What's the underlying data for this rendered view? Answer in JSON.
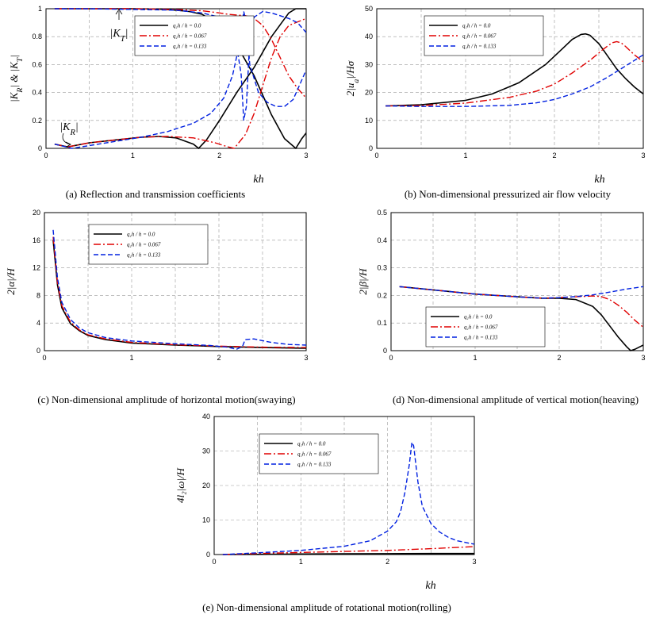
{
  "colors": {
    "series0": "#000000",
    "series1": "#e00000",
    "series2": "#0020e0",
    "grid": "#9a9a9a"
  },
  "chart_data": [
    {
      "id": "a",
      "type": "line",
      "caption": "(a) Reflection and transmission coefficients",
      "xlabel": "kh",
      "ylabel": "|K_R| & |K_T|",
      "xlim": [
        0,
        3
      ],
      "ylim": [
        0,
        1
      ],
      "xticks": [
        "0",
        "1",
        "2",
        "3"
      ],
      "yticks": [
        "0",
        "0.2",
        "0.4",
        "0.6",
        "0.8",
        "1"
      ],
      "legend": [
        "q₁h / h = 0.0",
        "q₁h / h = 0.067",
        "q₁h / h = 0.133"
      ],
      "legend_position": "top-right",
      "annotations": [
        "|K_T|",
        "|K_R|"
      ],
      "series": [
        {
          "name": "q₁h / h = 0.0 (K_R)",
          "x": [
            0.1,
            0.25,
            0.5,
            0.8,
            1.1,
            1.3,
            1.5,
            1.7,
            1.76,
            1.85,
            2.0,
            2.2,
            2.4,
            2.6,
            2.8,
            2.88,
            2.95,
            3.0
          ],
          "y": [
            0.03,
            0.01,
            0.04,
            0.06,
            0.08,
            0.085,
            0.075,
            0.03,
            0.0,
            0.06,
            0.2,
            0.4,
            0.58,
            0.8,
            0.97,
            1.0,
            1.0,
            1.0
          ]
        },
        {
          "name": "q₁h / h = 0.0 (K_T)",
          "x": [
            0.1,
            0.5,
            1.0,
            1.3,
            1.5,
            1.65,
            1.8,
            2.0,
            2.2,
            2.4,
            2.6,
            2.75,
            2.88,
            2.95,
            3.0
          ],
          "y": [
            1.0,
            1.0,
            1.0,
            0.998,
            0.99,
            0.98,
            0.96,
            0.88,
            0.74,
            0.52,
            0.24,
            0.07,
            0.0,
            0.07,
            0.11
          ]
        },
        {
          "name": "q₁h / h = 0.067 (K_R)",
          "x": [
            0.1,
            0.25,
            0.5,
            0.8,
            1.1,
            1.4,
            1.7,
            1.95,
            2.1,
            2.17,
            2.3,
            2.4,
            2.5,
            2.6,
            2.7,
            2.8,
            3.0
          ],
          "y": [
            0.03,
            0.01,
            0.04,
            0.06,
            0.08,
            0.085,
            0.075,
            0.04,
            0.01,
            0.0,
            0.1,
            0.25,
            0.45,
            0.65,
            0.8,
            0.88,
            0.93
          ]
        },
        {
          "name": "q₁h / h = 0.067 (K_T)",
          "x": [
            0.1,
            0.5,
            1.0,
            1.5,
            1.8,
            2.0,
            2.1,
            2.2,
            2.3,
            2.4,
            2.5,
            2.6,
            2.7,
            2.8,
            2.9,
            3.0
          ],
          "y": [
            1.0,
            1.0,
            1.0,
            0.995,
            0.985,
            0.97,
            0.96,
            0.955,
            0.95,
            0.93,
            0.88,
            0.78,
            0.65,
            0.52,
            0.43,
            0.36
          ]
        },
        {
          "name": "q₁h / h = 0.133 (K_R)",
          "x": [
            0.1,
            0.3,
            0.5,
            0.8,
            1.1,
            1.4,
            1.7,
            1.9,
            2.05,
            2.15,
            2.2,
            2.25,
            2.28,
            2.31,
            2.35,
            2.45,
            2.55,
            2.65,
            2.75,
            2.85,
            3.0
          ],
          "y": [
            0.03,
            0.0,
            0.02,
            0.05,
            0.08,
            0.12,
            0.18,
            0.25,
            0.36,
            0.52,
            0.66,
            0.84,
            0.98,
            0.9,
            0.6,
            0.4,
            0.33,
            0.3,
            0.3,
            0.35,
            0.56
          ]
        },
        {
          "name": "q₁h / h = 0.133 (K_T)",
          "x": [
            0.1,
            0.5,
            1.0,
            1.5,
            1.8,
            2.0,
            2.1,
            2.15,
            2.2,
            2.25,
            2.28,
            2.31,
            2.35,
            2.4,
            2.5,
            2.6,
            2.7,
            2.8,
            2.9,
            3.0
          ],
          "y": [
            1.0,
            1.0,
            0.995,
            0.99,
            0.97,
            0.94,
            0.9,
            0.84,
            0.73,
            0.53,
            0.2,
            0.3,
            0.78,
            0.94,
            0.98,
            0.97,
            0.95,
            0.93,
            0.9,
            0.83
          ]
        }
      ]
    },
    {
      "id": "b",
      "type": "line",
      "caption": "(b) Non-dimensional pressurized air flow velocity",
      "xlabel": "kh",
      "ylabel": "2|u_a|/Hσ",
      "xlim": [
        0,
        3
      ],
      "ylim": [
        0,
        50
      ],
      "xticks": [
        "0",
        "1",
        "2",
        "3"
      ],
      "yticks": [
        "0",
        "10",
        "20",
        "30",
        "40",
        "50"
      ],
      "legend": [
        "q₁h / h = 0.0",
        "q₁h / h = 0.067",
        "q₁h / h = 0.133"
      ],
      "legend_position": "top-left",
      "series": [
        {
          "name": "q₁h / h = 0.0",
          "x": [
            0.1,
            0.5,
            1.0,
            1.3,
            1.6,
            1.9,
            2.1,
            2.2,
            2.3,
            2.35,
            2.4,
            2.5,
            2.6,
            2.7,
            2.8,
            2.9,
            3.0
          ],
          "y": [
            15.2,
            15.6,
            17.2,
            19.5,
            23.5,
            30,
            36,
            39,
            40.8,
            41,
            40.5,
            37.5,
            33,
            28.5,
            25,
            22,
            19.5
          ]
        },
        {
          "name": "q₁h / h = 0.067",
          "x": [
            0.1,
            0.5,
            1.0,
            1.5,
            1.8,
            2.0,
            2.2,
            2.4,
            2.55,
            2.65,
            2.7,
            2.75,
            2.8,
            2.9,
            3.0
          ],
          "y": [
            15.2,
            15.3,
            16.2,
            18.3,
            20.5,
            23,
            27,
            31.5,
            35.5,
            37.8,
            38.2,
            37.8,
            36.5,
            33.5,
            31
          ]
        },
        {
          "name": "q₁h / h = 0.133",
          "x": [
            0.1,
            0.5,
            1.0,
            1.5,
            1.8,
            2.0,
            2.2,
            2.4,
            2.6,
            2.8,
            3.0
          ],
          "y": [
            15.2,
            15.0,
            15.0,
            15.4,
            16.3,
            17.5,
            19.5,
            22,
            25.5,
            29.5,
            33.5
          ]
        }
      ]
    },
    {
      "id": "c",
      "type": "line",
      "caption": "(c) Non-dimensional amplitude of horizontal motion(swaying)",
      "xlabel": "",
      "ylabel": "2|α|/H",
      "xlim": [
        0,
        3
      ],
      "ylim": [
        0,
        20
      ],
      "xticks": [
        "0",
        "1",
        "2",
        "3"
      ],
      "yticks": [
        "0",
        "4",
        "8",
        "12",
        "16",
        "20"
      ],
      "legend": [
        "q₁h / h = 0.0",
        "q₁h / h = 0.067",
        "q₁h / h = 0.133"
      ],
      "legend_position": "top-center",
      "series": [
        {
          "name": "q₁h / h = 0.0",
          "x": [
            0.1,
            0.15,
            0.2,
            0.3,
            0.4,
            0.5,
            0.7,
            1.0,
            1.5,
            2.0,
            2.5,
            3.0
          ],
          "y": [
            16.0,
            9.5,
            6.2,
            3.9,
            2.9,
            2.2,
            1.6,
            1.1,
            0.8,
            0.6,
            0.45,
            0.35
          ]
        },
        {
          "name": "q₁h / h = 0.067",
          "x": [
            0.1,
            0.15,
            0.2,
            0.3,
            0.4,
            0.5,
            0.7,
            1.0,
            1.5,
            2.0,
            2.5,
            3.0
          ],
          "y": [
            16.5,
            9.8,
            6.5,
            4.1,
            3.0,
            2.3,
            1.7,
            1.2,
            0.85,
            0.65,
            0.5,
            0.45
          ]
        },
        {
          "name": "q₁h / h = 0.133",
          "x": [
            0.1,
            0.15,
            0.2,
            0.3,
            0.4,
            0.5,
            0.7,
            1.0,
            1.5,
            1.9,
            2.1,
            2.2,
            2.27,
            2.3,
            2.4,
            2.6,
            2.8,
            3.0
          ],
          "y": [
            17.5,
            10.5,
            7.0,
            4.5,
            3.3,
            2.6,
            1.9,
            1.4,
            1.0,
            0.75,
            0.5,
            0.2,
            0.6,
            1.6,
            1.7,
            1.2,
            0.9,
            0.8
          ]
        }
      ]
    },
    {
      "id": "d",
      "type": "line",
      "caption": "(d) Non-dimensional amplitude of vertical motion(heaving)",
      "xlabel": "",
      "ylabel": "2|β|/H",
      "xlim": [
        0,
        3
      ],
      "ylim": [
        0,
        0.5
      ],
      "xticks": [
        "0",
        "1",
        "2",
        "3"
      ],
      "yticks": [
        "0",
        "0.1",
        "0.2",
        "0.3",
        "0.4",
        "0.5"
      ],
      "legend": [
        "q₁h / h = 0.0",
        "q₁h / h = 0.067",
        "q₁h / h = 0.133"
      ],
      "legend_position": "lower-left",
      "series": [
        {
          "name": "q₁h / h = 0.0",
          "x": [
            0.1,
            0.5,
            1.0,
            1.5,
            1.8,
            2.0,
            2.2,
            2.4,
            2.5,
            2.6,
            2.7,
            2.8,
            2.85,
            2.9,
            3.0
          ],
          "y": [
            0.232,
            0.22,
            0.205,
            0.195,
            0.19,
            0.19,
            0.185,
            0.16,
            0.13,
            0.09,
            0.05,
            0.015,
            0.0,
            0.005,
            0.02
          ]
        },
        {
          "name": "q₁h / h = 0.067",
          "x": [
            0.1,
            0.5,
            1.0,
            1.5,
            1.8,
            2.0,
            2.2,
            2.4,
            2.5,
            2.6,
            2.7,
            2.8,
            2.9,
            3.0
          ],
          "y": [
            0.232,
            0.22,
            0.205,
            0.195,
            0.19,
            0.192,
            0.195,
            0.198,
            0.196,
            0.185,
            0.165,
            0.14,
            0.11,
            0.085
          ]
        },
        {
          "name": "q₁h / h = 0.133",
          "x": [
            0.1,
            0.5,
            1.0,
            1.5,
            1.8,
            2.0,
            2.2,
            2.4,
            2.6,
            2.8,
            3.0
          ],
          "y": [
            0.232,
            0.22,
            0.205,
            0.195,
            0.19,
            0.192,
            0.196,
            0.202,
            0.212,
            0.223,
            0.232
          ]
        }
      ]
    },
    {
      "id": "e",
      "type": "line",
      "caption": "(e) Non-dimensional amplitude of rotational motion(rolling)",
      "xlabel": "kh",
      "ylabel": "4l₂|ω|/H",
      "xlim": [
        0,
        3
      ],
      "ylim": [
        0,
        40
      ],
      "xticks": [
        "0",
        "1",
        "2",
        "3"
      ],
      "yticks": [
        "0",
        "10",
        "20",
        "30",
        "40"
      ],
      "legend": [
        "q₁h / h = 0.0",
        "q₁h / h = 0.067",
        "q₁h / h = 0.133"
      ],
      "legend_position": "top-left",
      "series": [
        {
          "name": "q₁h / h = 0.0",
          "x": [
            0.1,
            0.5,
            1.0,
            1.5,
            2.0,
            2.5,
            3.0
          ],
          "y": [
            0.0,
            0.05,
            0.15,
            0.2,
            0.25,
            0.3,
            0.3
          ]
        },
        {
          "name": "q₁h / h = 0.067",
          "x": [
            0.1,
            0.5,
            1.0,
            1.5,
            2.0,
            2.5,
            3.0
          ],
          "y": [
            0.0,
            0.3,
            0.6,
            0.9,
            1.2,
            1.7,
            2.3
          ]
        },
        {
          "name": "q₁h / h = 0.133",
          "x": [
            0.1,
            0.5,
            1.0,
            1.5,
            1.8,
            2.0,
            2.1,
            2.15,
            2.2,
            2.25,
            2.28,
            2.3,
            2.35,
            2.4,
            2.5,
            2.6,
            2.7,
            2.8,
            3.0
          ],
          "y": [
            0.0,
            0.5,
            1.2,
            2.4,
            4.0,
            6.8,
            9.5,
            12.5,
            18.0,
            26.0,
            32.5,
            31.5,
            21.0,
            14.0,
            9.0,
            6.5,
            5.0,
            4.0,
            3.0
          ]
        }
      ]
    }
  ]
}
